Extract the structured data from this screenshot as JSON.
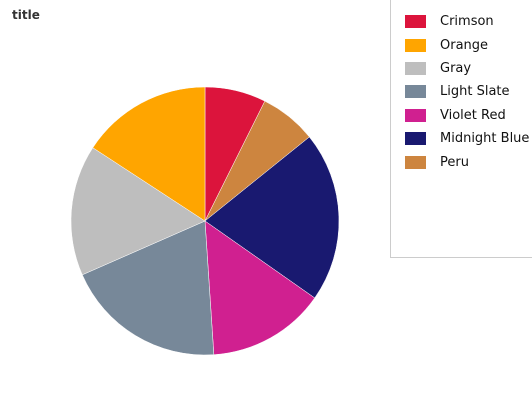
{
  "chart_data": {
    "type": "pie",
    "title": "title",
    "slices": [
      {
        "label": "Crimson",
        "value": 7,
        "color": "#dc143c"
      },
      {
        "label": "Orange",
        "value": 15,
        "color": "#ffa500"
      },
      {
        "label": "Gray",
        "value": 15,
        "color": "#bebebe"
      },
      {
        "label": "Light Slate",
        "value": 18.5,
        "color": "#778899"
      },
      {
        "label": "Violet Red",
        "value": 13.5,
        "color": "#d02090"
      },
      {
        "label": "Midnight Blue",
        "value": 19.5,
        "color": "#191970"
      },
      {
        "label": "Peru",
        "value": 6.5,
        "color": "#cd853f"
      }
    ],
    "legend_position": "right",
    "slice_order_clockwise_from_top": [
      "Crimson",
      "Peru",
      "Midnight Blue",
      "Violet Red",
      "Light Slate",
      "Gray",
      "Orange"
    ]
  }
}
